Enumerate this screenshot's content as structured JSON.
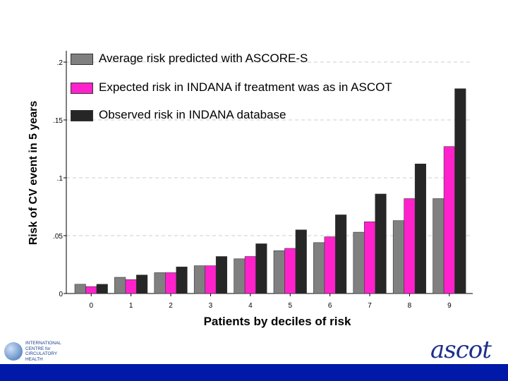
{
  "chart_data": {
    "type": "bar",
    "categories": [
      "0",
      "1",
      "2",
      "3",
      "4",
      "5",
      "6",
      "7",
      "8",
      "9"
    ],
    "series": [
      {
        "name": "Average risk predicted with ASCORE-S",
        "color": "#808080",
        "values": [
          0.008,
          0.014,
          0.018,
          0.024,
          0.03,
          0.037,
          0.044,
          0.053,
          0.063,
          0.082
        ]
      },
      {
        "name": "Expected risk in INDANA if treatment was as in ASCOT",
        "color": "#ff22cc",
        "values": [
          0.006,
          0.012,
          0.018,
          0.024,
          0.032,
          0.039,
          0.049,
          0.062,
          0.082,
          0.127
        ]
      },
      {
        "name": "Observed risk in INDANA database",
        "color": "#262626",
        "values": [
          0.008,
          0.016,
          0.023,
          0.032,
          0.043,
          0.055,
          0.068,
          0.086,
          0.112,
          0.177
        ]
      }
    ],
    "xlabel": "Patients by deciles of risk",
    "ylabel": "Risk of CV event in 5 years",
    "ylim": [
      0,
      0.2
    ],
    "yticks": [
      0,
      0.05,
      0.1,
      0.15,
      0.2
    ],
    "ytick_labels": [
      "0",
      ".05",
      ".1",
      ".15",
      ".2"
    ],
    "grid": "horizontal dashed",
    "legend_position": "top-left"
  },
  "branding": {
    "left_logo_text": [
      "INTERNATIONAL",
      "CENTRE for",
      "CIRCULATORY",
      "HEALTH"
    ],
    "right_logo_text": "ascot",
    "right_logo_icon": "heart-icon"
  },
  "colors": {
    "footer_bar": "#0019a8"
  }
}
